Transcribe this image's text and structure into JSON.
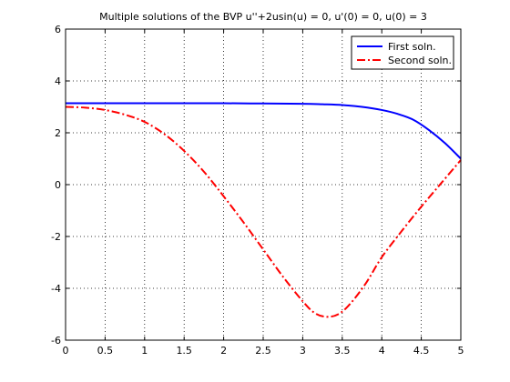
{
  "chart_data": {
    "type": "line",
    "title": "Multiple solutions of the BVP u''+2usin(u) = 0,  u'(0) = 0,  u(0) = 3",
    "xlabel": "",
    "ylabel": "",
    "xlim": [
      0,
      5
    ],
    "ylim": [
      -6,
      6
    ],
    "x_ticks": [
      0,
      0.5,
      1,
      1.5,
      2,
      2.5,
      3,
      3.5,
      4,
      4.5,
      5
    ],
    "y_ticks": [
      -6,
      -4,
      -2,
      0,
      2,
      4,
      6
    ],
    "grid": true,
    "legend_position": "top-right",
    "series": [
      {
        "name": "First soln.",
        "color": "#0000ff",
        "line_style": "solid",
        "x": [
          0,
          0.5,
          1,
          1.5,
          2,
          2.5,
          3,
          3.25,
          3.5,
          3.75,
          4,
          4.2,
          4.4,
          4.6,
          4.8,
          5
        ],
        "y": [
          3.14,
          3.14,
          3.14,
          3.14,
          3.14,
          3.13,
          3.12,
          3.1,
          3.07,
          3.0,
          2.88,
          2.73,
          2.5,
          2.1,
          1.6,
          1.0
        ]
      },
      {
        "name": "Second soln.",
        "color": "#ff0000",
        "line_style": "dashdot",
        "x": [
          0,
          0.25,
          0.5,
          0.75,
          1,
          1.25,
          1.5,
          1.75,
          2,
          2.25,
          2.5,
          2.75,
          3,
          3.15,
          3.3,
          3.45,
          3.6,
          3.8,
          4,
          4.25,
          4.5,
          4.75,
          5
        ],
        "y": [
          3.0,
          2.97,
          2.88,
          2.7,
          2.42,
          1.95,
          1.3,
          0.5,
          -0.45,
          -1.45,
          -2.5,
          -3.55,
          -4.5,
          -4.95,
          -5.1,
          -5.0,
          -4.6,
          -3.8,
          -2.8,
          -1.8,
          -0.85,
          0.05,
          0.95
        ]
      }
    ]
  }
}
